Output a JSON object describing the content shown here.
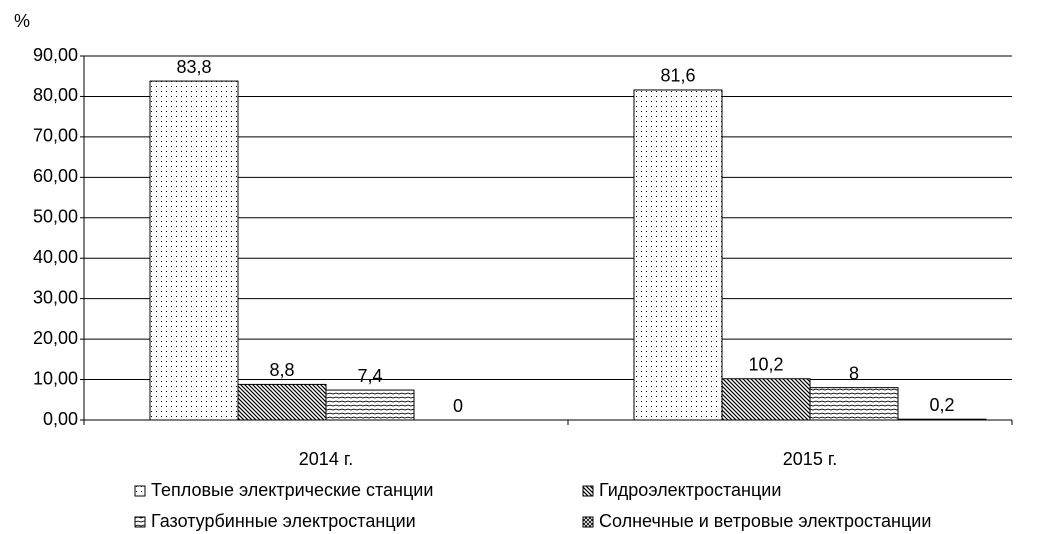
{
  "chart_data": {
    "type": "bar",
    "ylabel": "%",
    "categories": [
      "2014 г.",
      "2015 г."
    ],
    "series": [
      {
        "name": "Тепловые электрические станции",
        "color": "#000000",
        "pattern": "dots",
        "values": [
          83.8,
          81.6
        ],
        "value_labels": [
          "83,8",
          "81,6"
        ]
      },
      {
        "name": "Гидроэлектростанции",
        "color": "#000000",
        "pattern": "diagonal",
        "values": [
          8.8,
          10.2
        ],
        "value_labels": [
          "8,8",
          "10,2"
        ]
      },
      {
        "name": "Газотурбинные электростанции",
        "color": "#000000",
        "pattern": "horizontal",
        "values": [
          7.4,
          8
        ],
        "value_labels": [
          "7,4",
          "8"
        ]
      },
      {
        "name": "Солнечные и ветровые электростанции",
        "color": "#000000",
        "pattern": "cross",
        "values": [
          0,
          0.2
        ],
        "value_labels": [
          "0",
          "0,2"
        ]
      }
    ],
    "ylim": [
      0,
      90
    ],
    "yticks": [
      {
        "value": 0,
        "label": "0,00"
      },
      {
        "value": 10,
        "label": "10,00"
      },
      {
        "value": 20,
        "label": "20,00"
      },
      {
        "value": 30,
        "label": "30,00"
      },
      {
        "value": 40,
        "label": "40,00"
      },
      {
        "value": 50,
        "label": "50,00"
      },
      {
        "value": 60,
        "label": "60,00"
      },
      {
        "value": 70,
        "label": "70,00"
      },
      {
        "value": 80,
        "label": "80,00"
      },
      {
        "value": 90,
        "label": "90,00"
      }
    ],
    "grid": true
  }
}
